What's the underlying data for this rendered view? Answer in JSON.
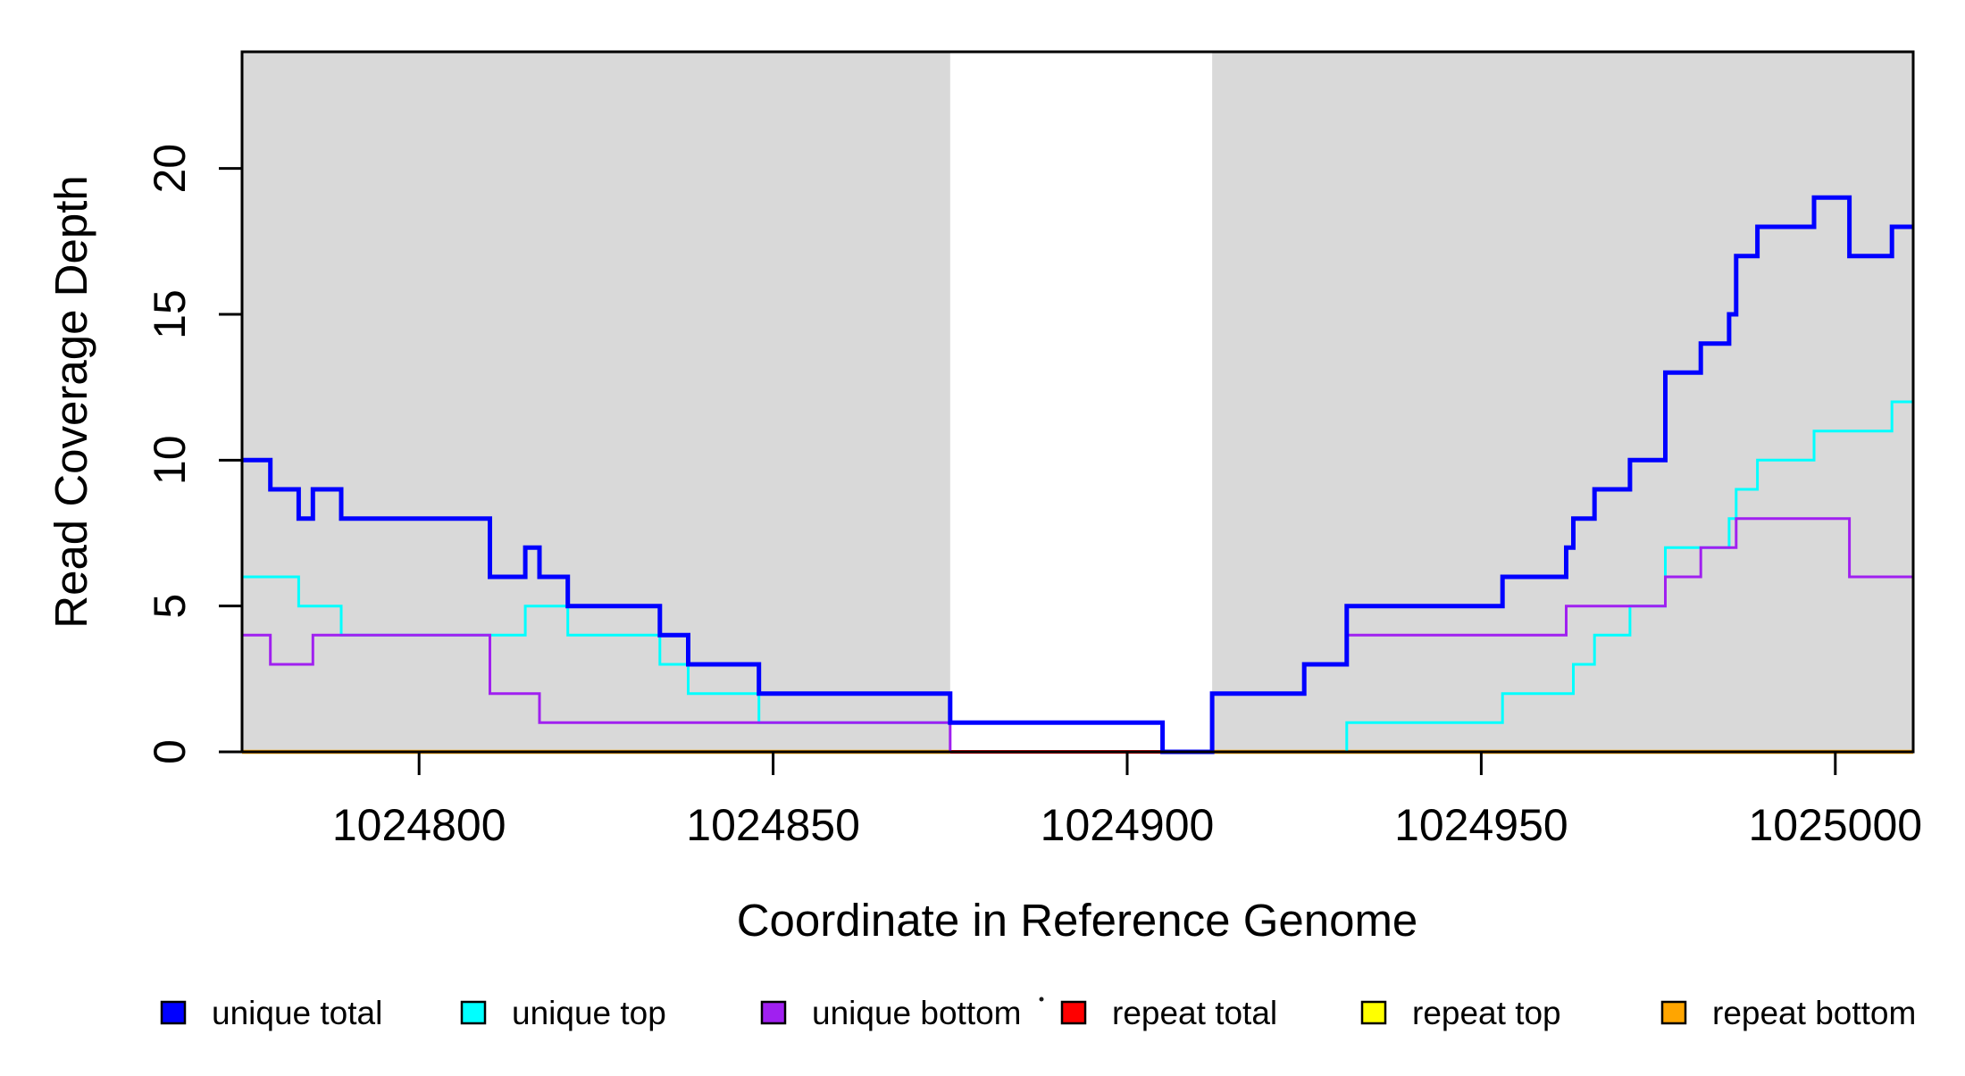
{
  "chart_data": {
    "type": "step-line",
    "title": "",
    "xlabel": "Coordinate in Reference Genome",
    "ylabel": "Read Coverage Depth",
    "xlim": [
      1024775,
      1025011
    ],
    "ylim": [
      0,
      24
    ],
    "grid": false,
    "panel_color": "#D9D9D9",
    "background_color": "#FFFFFF",
    "shaded_regions": [
      [
        1024775,
        1024875
      ],
      [
        1024912,
        1025011
      ]
    ],
    "gap_region": [
      1024875,
      1024912
    ],
    "x_ticks": [
      {
        "value": 1024800,
        "label": "1024800"
      },
      {
        "value": 1024850,
        "label": "1024850"
      },
      {
        "value": 1024900,
        "label": "1024900"
      },
      {
        "value": 1024950,
        "label": "1024950"
      },
      {
        "value": 1025000,
        "label": "1025000"
      }
    ],
    "y_ticks": [
      {
        "value": 0,
        "label": "0"
      },
      {
        "value": 5,
        "label": "5"
      },
      {
        "value": 10,
        "label": "10"
      },
      {
        "value": 15,
        "label": "15"
      },
      {
        "value": 20,
        "label": "20"
      }
    ],
    "draw_order": [
      "repeat_top",
      "repeat_bottom",
      "repeat_total",
      "unique_top",
      "unique_bottom",
      "unique_total"
    ],
    "series": [
      {
        "name": "unique_total",
        "label": "unique total",
        "color": "#0000FF",
        "width": 5,
        "segments": [
          {
            "points": [
              [
                1024775,
                10
              ],
              [
                1024779,
                9
              ],
              [
                1024783,
                8
              ],
              [
                1024785,
                9
              ],
              [
                1024789,
                8
              ],
              [
                1024810,
                6
              ],
              [
                1024815,
                7
              ],
              [
                1024817,
                6
              ],
              [
                1024821,
                5
              ],
              [
                1024834,
                4
              ],
              [
                1024838,
                3
              ],
              [
                1024848,
                2
              ],
              [
                1024875,
                1
              ],
              [
                1024905,
                0
              ],
              [
                1024912,
                2
              ],
              [
                1024925,
                3
              ],
              [
                1024931,
                5
              ],
              [
                1024953,
                6
              ],
              [
                1024962,
                7
              ],
              [
                1024963,
                8
              ],
              [
                1024966,
                9
              ],
              [
                1024971,
                10
              ],
              [
                1024976,
                13
              ],
              [
                1024981,
                14
              ],
              [
                1024985,
                15
              ],
              [
                1024986,
                17
              ],
              [
                1024989,
                18
              ],
              [
                1024997,
                19
              ],
              [
                1025002,
                17
              ],
              [
                1025008,
                18
              ]
            ],
            "xend": 1025011
          }
        ]
      },
      {
        "name": "unique_top",
        "label": "unique top",
        "color": "#00FFFF",
        "width": 3,
        "segments": [
          {
            "points": [
              [
                1024775,
                6
              ],
              [
                1024783,
                5
              ],
              [
                1024789,
                4
              ],
              [
                1024815,
                5
              ],
              [
                1024821,
                4
              ],
              [
                1024834,
                3
              ],
              [
                1024838,
                2
              ],
              [
                1024848,
                1
              ],
              [
                1024905,
                0
              ],
              [
                1024931,
                1
              ],
              [
                1024953,
                2
              ],
              [
                1024963,
                3
              ],
              [
                1024966,
                4
              ],
              [
                1024971,
                5
              ],
              [
                1024976,
                7
              ],
              [
                1024985,
                8
              ],
              [
                1024986,
                9
              ],
              [
                1024989,
                10
              ],
              [
                1024997,
                11
              ],
              [
                1025008,
                12
              ]
            ],
            "xend": 1025011
          }
        ]
      },
      {
        "name": "unique_bottom",
        "label": "unique bottom",
        "color": "#A020F0",
        "width": 3,
        "segments": [
          {
            "points": [
              [
                1024775,
                4
              ],
              [
                1024779,
                3
              ],
              [
                1024785,
                4
              ],
              [
                1024810,
                2
              ],
              [
                1024817,
                1
              ],
              [
                1024875,
                0
              ],
              [
                1024912,
                2
              ],
              [
                1024925,
                3
              ],
              [
                1024931,
                4
              ],
              [
                1024962,
                5
              ],
              [
                1024976,
                6
              ],
              [
                1024981,
                7
              ],
              [
                1024986,
                8
              ],
              [
                1025002,
                6
              ]
            ],
            "xend": 1025011
          }
        ]
      },
      {
        "name": "repeat_total",
        "label": "repeat total",
        "color": "#FF0000",
        "width": 4,
        "segments": [
          {
            "points": [
              [
                1024875,
                0
              ]
            ],
            "xend": 1024912
          }
        ]
      },
      {
        "name": "repeat_top",
        "label": "repeat top",
        "color": "#FFFF00",
        "width": 3,
        "segments": [
          {
            "points": [
              [
                1024775,
                0
              ]
            ],
            "xend": 1024875
          },
          {
            "points": [
              [
                1024912,
                0
              ]
            ],
            "xend": 1025011
          }
        ]
      },
      {
        "name": "repeat_bottom",
        "label": "repeat bottom",
        "color": "#FFA500",
        "width": 4.5,
        "segments": [
          {
            "points": [
              [
                1024775,
                0
              ]
            ],
            "xend": 1024875
          },
          {
            "points": [
              [
                1024912,
                0
              ]
            ],
            "xend": 1025011
          }
        ]
      }
    ],
    "legend": [
      {
        "name": "unique_total",
        "label": "unique total",
        "color": "#0000FF"
      },
      {
        "name": "unique_top",
        "label": "unique top",
        "color": "#00FFFF"
      },
      {
        "name": "unique_bottom",
        "label": "unique bottom",
        "color": "#A020F0"
      },
      {
        "name": "repeat_total",
        "label": "repeat total",
        "color": "#FF0000"
      },
      {
        "name": "repeat_top",
        "label": "repeat top",
        "color": "#FFFF00"
      },
      {
        "name": "repeat_bottom",
        "label": "repeat bottom",
        "color": "#FFA500"
      }
    ]
  }
}
